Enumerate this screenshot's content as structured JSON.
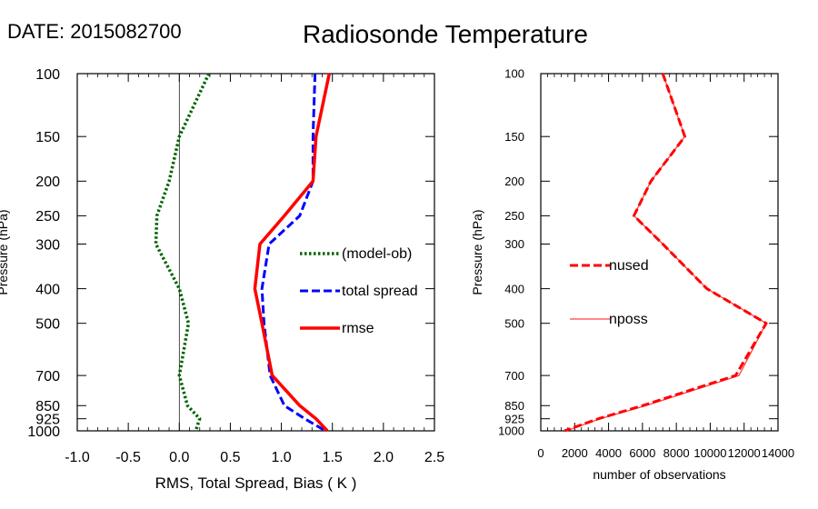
{
  "header": {
    "date_label": "DATE: 2015082700",
    "title": "Radiosonde Temperature"
  },
  "chart_data": [
    {
      "type": "line",
      "yscale": "log",
      "yinverted": true,
      "ylabel": "Pressure (hPa)",
      "xlabel": "RMS, Total Spread, Bias ( K )",
      "xlim": [
        -1.0,
        2.5
      ],
      "ylim": [
        1000,
        100
      ],
      "xticks": [
        -1.0,
        -0.5,
        0.0,
        0.5,
        1.0,
        1.5,
        2.0,
        2.5
      ],
      "xtick_labels": [
        "-1.0",
        "-0.5",
        "0.0",
        "0.5",
        "1.0",
        "1.5",
        "2.0",
        "2.5"
      ],
      "yticks": [
        100,
        150,
        200,
        250,
        300,
        400,
        500,
        700,
        850,
        925,
        1000
      ],
      "ytick_labels": [
        "100",
        "150",
        "200",
        "250",
        "300",
        "400",
        "500",
        "700",
        "850",
        "925",
        "1000"
      ],
      "zero_line": true,
      "legend_position": "right",
      "series": [
        {
          "name": "(model-ob)",
          "color": "#006400",
          "dash": "dotted",
          "points": [
            [
              0.29,
              100
            ],
            [
              0.0,
              150
            ],
            [
              -0.1,
              200
            ],
            [
              -0.22,
              250
            ],
            [
              -0.23,
              300
            ],
            [
              0.0,
              400
            ],
            [
              0.09,
              500
            ],
            [
              0.0,
              700
            ],
            [
              0.08,
              850
            ],
            [
              0.2,
              925
            ],
            [
              0.16,
              1000
            ]
          ]
        },
        {
          "name": "total spread",
          "color": "#0000ff",
          "dash": "dashed",
          "points": [
            [
              1.33,
              100
            ],
            [
              1.31,
              150
            ],
            [
              1.31,
              200
            ],
            [
              1.18,
              250
            ],
            [
              0.88,
              300
            ],
            [
              0.81,
              400
            ],
            [
              0.83,
              500
            ],
            [
              0.89,
              700
            ],
            [
              1.03,
              850
            ],
            [
              1.23,
              925
            ],
            [
              1.43,
              1000
            ]
          ]
        },
        {
          "name": "rmse",
          "color": "#ff0000",
          "dash": "solid",
          "points": [
            [
              1.47,
              100
            ],
            [
              1.34,
              150
            ],
            [
              1.31,
              200
            ],
            [
              1.03,
              250
            ],
            [
              0.79,
              300
            ],
            [
              0.74,
              400
            ],
            [
              0.81,
              500
            ],
            [
              0.91,
              700
            ],
            [
              1.18,
              850
            ],
            [
              1.34,
              925
            ],
            [
              1.45,
              1000
            ]
          ]
        }
      ]
    },
    {
      "type": "line",
      "yscale": "log",
      "yinverted": true,
      "ylabel": "Pressure (hPa)",
      "xlabel": "number of observations",
      "xlim": [
        0,
        14000
      ],
      "ylim": [
        1000,
        100
      ],
      "xticks": [
        0,
        2000,
        4000,
        6000,
        8000,
        10000,
        12000,
        14000
      ],
      "xtick_labels": [
        "0",
        "2000",
        "4000",
        "6000",
        "8000",
        "10000",
        "12000",
        "14000"
      ],
      "yticks": [
        100,
        150,
        200,
        250,
        300,
        400,
        500,
        700,
        850,
        925,
        1000
      ],
      "ytick_labels": [
        "100",
        "150",
        "200",
        "250",
        "300",
        "400",
        "500",
        "700",
        "850",
        "925",
        "1000"
      ],
      "zero_line": false,
      "legend_position": "left",
      "series": [
        {
          "name": "nused",
          "color": "#ff0000",
          "dash": "dashed",
          "points": [
            [
              7200,
              100
            ],
            [
              8500,
              150
            ],
            [
              6500,
              200
            ],
            [
              5500,
              250
            ],
            [
              7200,
              300
            ],
            [
              9800,
              400
            ],
            [
              13300,
              500
            ],
            [
              11500,
              700
            ],
            [
              6000,
              850
            ],
            [
              3400,
              925
            ],
            [
              1400,
              1000
            ]
          ]
        },
        {
          "name": "nposs",
          "color": "#ff4040",
          "dash": "thin",
          "points": [
            [
              7200,
              100
            ],
            [
              8500,
              150
            ],
            [
              6500,
              200
            ],
            [
              5500,
              250
            ],
            [
              7200,
              300
            ],
            [
              9800,
              400
            ],
            [
              13300,
              500
            ],
            [
              11700,
              700
            ],
            [
              6200,
              850
            ],
            [
              3500,
              925
            ],
            [
              1500,
              1000
            ]
          ]
        }
      ]
    }
  ]
}
